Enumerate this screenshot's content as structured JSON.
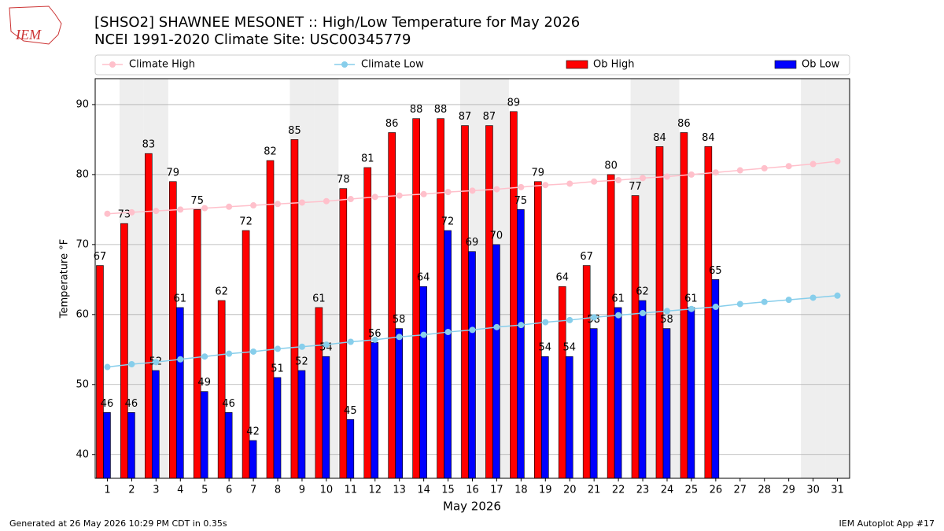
{
  "chart_data": {
    "type": "bar",
    "title": "[SHSO2] SHAWNEE MESONET :: High/Low Temperature for May 2026",
    "subtitle": "NCEI 1991-2020 Climate Site: USC00345779",
    "logo": "IEM",
    "ylabel": "Temperature °F",
    "xlabel": "May 2026",
    "footer_left": "Generated at 26 May 2026 10:29 PM CDT in 0.35s",
    "footer_right": "IEM Autoplot App #17",
    "categories": [
      "1",
      "2",
      "3",
      "4",
      "5",
      "6",
      "7",
      "8",
      "9",
      "10",
      "11",
      "12",
      "13",
      "14",
      "15",
      "16",
      "17",
      "18",
      "19",
      "20",
      "21",
      "22",
      "23",
      "24",
      "25",
      "26",
      "27",
      "28",
      "29",
      "30",
      "31"
    ],
    "shaded_days": [
      "2",
      "3",
      "9",
      "10",
      "16",
      "17",
      "23",
      "24",
      "30",
      "31"
    ],
    "series": [
      {
        "name": "Climate High",
        "type": "line",
        "color": "#ffc0cb",
        "values": [
          74.4,
          74.6,
          74.8,
          75.0,
          75.2,
          75.4,
          75.6,
          75.8,
          76.0,
          76.2,
          76.5,
          76.8,
          77.0,
          77.2,
          77.5,
          77.7,
          77.9,
          78.2,
          78.5,
          78.7,
          79.0,
          79.2,
          79.5,
          79.7,
          80.0,
          80.3,
          80.6,
          80.9,
          81.2,
          81.5,
          81.9
        ]
      },
      {
        "name": "Climate Low",
        "type": "line",
        "color": "#87ceeb",
        "values": [
          52.5,
          52.9,
          53.2,
          53.6,
          54.0,
          54.4,
          54.7,
          55.1,
          55.4,
          55.7,
          56.1,
          56.4,
          56.8,
          57.1,
          57.5,
          57.8,
          58.2,
          58.5,
          58.9,
          59.2,
          59.6,
          59.9,
          60.2,
          60.5,
          60.8,
          61.1,
          61.5,
          61.8,
          62.1,
          62.4,
          62.7
        ]
      },
      {
        "name": "Ob High",
        "type": "bar",
        "color": "#ff0000",
        "values": [
          67,
          73,
          83,
          79,
          75,
          62,
          72,
          82,
          85,
          61,
          78,
          81,
          86,
          88,
          88,
          87,
          87,
          89,
          79,
          64,
          67,
          80,
          77,
          84,
          86,
          84,
          null,
          null,
          null,
          null,
          null
        ]
      },
      {
        "name": "Ob Low",
        "type": "bar",
        "color": "#0000ff",
        "values": [
          46,
          46,
          52,
          61,
          49,
          46,
          42,
          51,
          52,
          54,
          45,
          56,
          58,
          64,
          72,
          69,
          70,
          75,
          54,
          54,
          58,
          61,
          62,
          58,
          61,
          65,
          null,
          null,
          null,
          null,
          null
        ]
      }
    ],
    "ylim": [
      36.6,
      93.7
    ],
    "yticks": [
      40,
      50,
      60,
      70,
      80,
      90
    ],
    "grid": true
  }
}
